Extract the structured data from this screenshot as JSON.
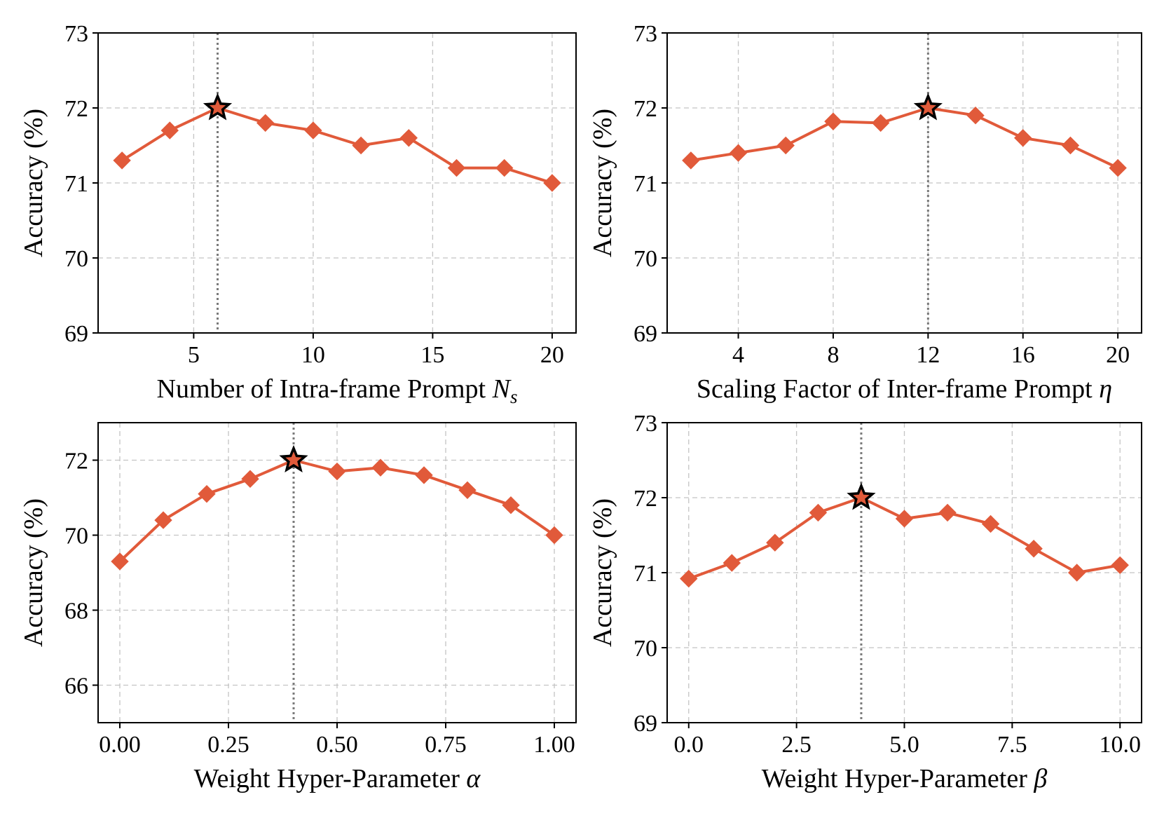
{
  "colors": {
    "series": "#e15a3a",
    "star_fill": "#e15a3a",
    "star_stroke": "#000000",
    "best_line": "#7a7a7a"
  },
  "chart_data": [
    {
      "type": "line",
      "title": "",
      "xlabel": "Number of Intra-frame Prompt",
      "xlabel_symbol": "N",
      "xlabel_subscript": "s",
      "ylabel": "Accuracy (%)",
      "xlim": [
        1,
        21
      ],
      "ylim": [
        69,
        73
      ],
      "xticks": [
        5,
        10,
        15,
        20
      ],
      "xtick_labels": [
        "5",
        "10",
        "15",
        "20"
      ],
      "yticks": [
        69,
        70,
        71,
        72,
        73
      ],
      "ytick_labels": [
        "69",
        "70",
        "71",
        "72",
        "73"
      ],
      "x": [
        2,
        4,
        6,
        8,
        10,
        12,
        14,
        16,
        18,
        20
      ],
      "y": [
        71.3,
        71.7,
        72.0,
        71.8,
        71.7,
        71.5,
        71.6,
        71.2,
        71.2,
        71.0
      ],
      "best_x": 6,
      "best_y": 72.0,
      "grid": true
    },
    {
      "type": "line",
      "title": "",
      "xlabel": "Scaling Factor of Inter-frame Prompt",
      "xlabel_symbol": "η",
      "xlabel_subscript": "",
      "ylabel": "Accuracy (%)",
      "xlim": [
        1,
        21
      ],
      "ylim": [
        69,
        73
      ],
      "xticks": [
        4,
        8,
        12,
        16,
        20
      ],
      "xtick_labels": [
        "4",
        "8",
        "12",
        "16",
        "20"
      ],
      "yticks": [
        69,
        70,
        71,
        72,
        73
      ],
      "ytick_labels": [
        "69",
        "70",
        "71",
        "72",
        "73"
      ],
      "x": [
        2,
        4,
        6,
        8,
        10,
        12,
        14,
        16,
        18,
        20
      ],
      "y": [
        71.3,
        71.4,
        71.5,
        71.82,
        71.8,
        72.0,
        71.9,
        71.6,
        71.5,
        71.2
      ],
      "best_x": 12,
      "best_y": 72.0,
      "grid": true
    },
    {
      "type": "line",
      "title": "",
      "xlabel": "Weight Hyper-Parameter",
      "xlabel_symbol": "α",
      "xlabel_subscript": "",
      "ylabel": "Accuracy (%)",
      "xlim": [
        -0.05,
        1.05
      ],
      "ylim": [
        65,
        73
      ],
      "xticks": [
        0,
        0.25,
        0.5,
        0.75,
        1.0
      ],
      "xtick_labels": [
        "0.00",
        "0.25",
        "0.50",
        "0.75",
        "1.00"
      ],
      "yticks": [
        66,
        68,
        70,
        72
      ],
      "ytick_labels": [
        "66",
        "68",
        "70",
        "72"
      ],
      "x": [
        0.0,
        0.1,
        0.2,
        0.3,
        0.4,
        0.5,
        0.6,
        0.7,
        0.8,
        0.9,
        1.0
      ],
      "y": [
        69.3,
        70.4,
        71.1,
        71.5,
        72.0,
        71.7,
        71.8,
        71.6,
        71.2,
        70.8,
        70.0
      ],
      "best_x": 0.4,
      "best_y": 72.0,
      "grid": true
    },
    {
      "type": "line",
      "title": "",
      "xlabel": "Weight Hyper-Parameter",
      "xlabel_symbol": "β",
      "xlabel_subscript": "",
      "ylabel": "Accuracy (%)",
      "xlim": [
        -0.5,
        10.5
      ],
      "ylim": [
        69,
        73
      ],
      "xticks": [
        0,
        2.5,
        5,
        7.5,
        10
      ],
      "xtick_labels": [
        "0.0",
        "2.5",
        "5.0",
        "7.5",
        "10.0"
      ],
      "yticks": [
        69,
        70,
        71,
        72,
        73
      ],
      "ytick_labels": [
        "69",
        "70",
        "71",
        "72",
        "73"
      ],
      "x": [
        0,
        1,
        2,
        3,
        4,
        5,
        6,
        7,
        8,
        9,
        10
      ],
      "y": [
        70.92,
        71.13,
        71.4,
        71.8,
        72.0,
        71.72,
        71.8,
        71.65,
        71.32,
        71.0,
        71.1
      ],
      "best_x": 4,
      "best_y": 72.0,
      "grid": true
    }
  ]
}
